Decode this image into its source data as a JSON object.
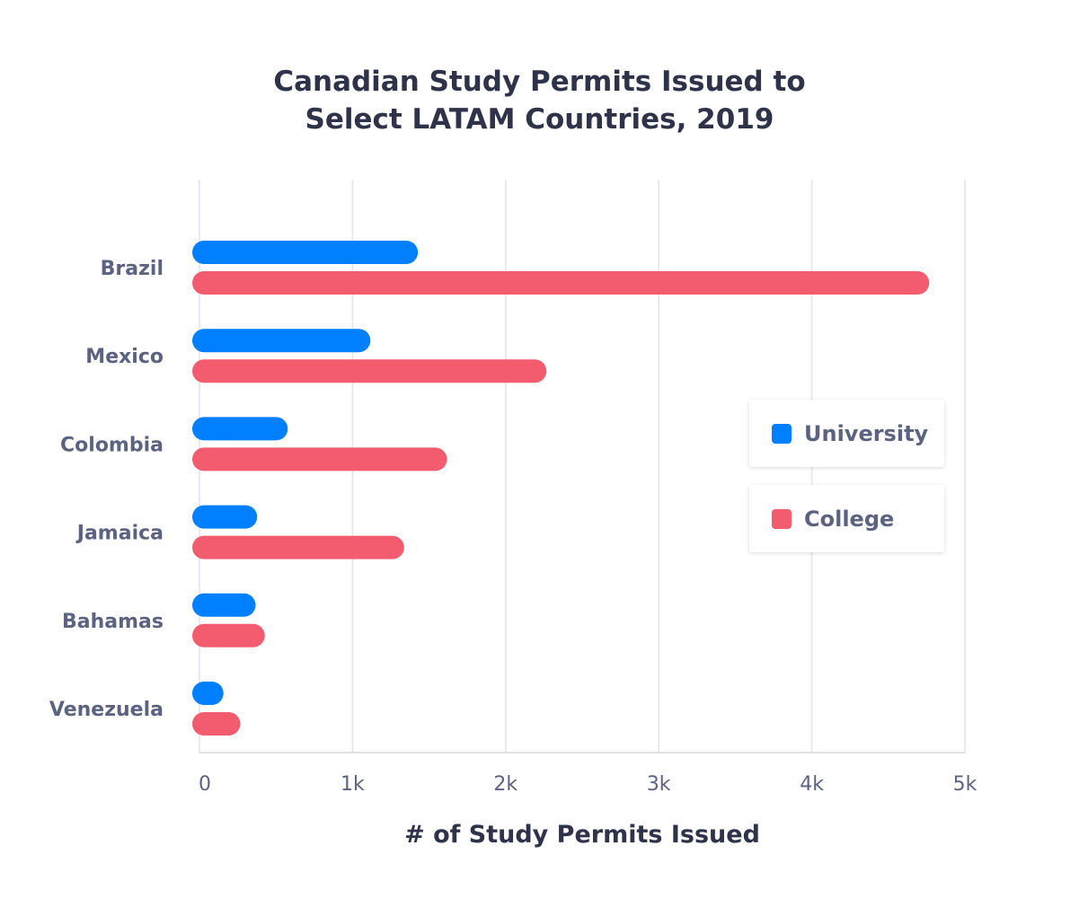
{
  "chart_data": {
    "type": "bar",
    "orientation": "horizontal",
    "title": "Canadian Study Permits Issued to Select LATAM Countries, 2019",
    "title_lines": [
      "Canadian Study Permits Issued to",
      "Select LATAM Countries, 2019"
    ],
    "xlabel": "# of Study Permits Issued",
    "ylabel": "",
    "categories": [
      "Brazil",
      "Mexico",
      "Colombia",
      "Jamaica",
      "Bahamas",
      "Venezuela"
    ],
    "series": [
      {
        "name": "University",
        "color": "#0080FF",
        "values": [
          1380,
          1070,
          530,
          330,
          320,
          110
        ]
      },
      {
        "name": "College",
        "color": "#F25C6E",
        "values": [
          4720,
          2220,
          1570,
          1290,
          380,
          220
        ]
      }
    ],
    "xlim": [
      0,
      5000
    ],
    "xticks": [
      0,
      1000,
      2000,
      3000,
      4000,
      5000
    ],
    "xtick_labels": [
      "0",
      "1k",
      "2k",
      "3k",
      "4k",
      "5k"
    ],
    "grid": "vertical",
    "legend_placement": "right"
  }
}
